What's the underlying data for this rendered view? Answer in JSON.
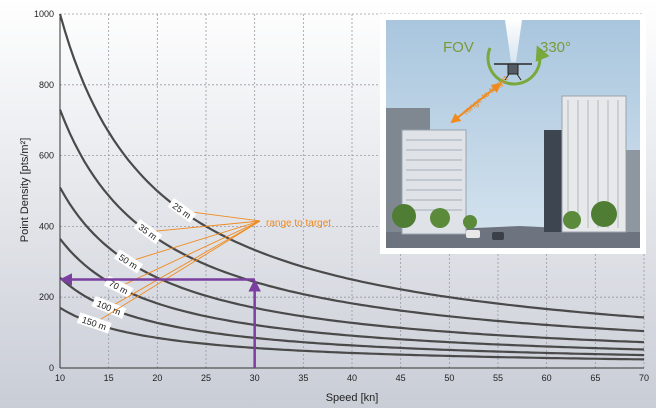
{
  "chart_data": {
    "type": "line",
    "title": "",
    "xlabel": "Speed [kn]",
    "ylabel": "Point Density [pts/m²]",
    "xlim": [
      10,
      70
    ],
    "ylim": [
      0,
      1000
    ],
    "x_ticks": [
      10,
      15,
      20,
      25,
      30,
      35,
      40,
      45,
      50,
      55,
      60,
      65,
      70
    ],
    "y_ticks": [
      0,
      200,
      400,
      600,
      800,
      1000
    ],
    "grid": true,
    "series": [
      {
        "name": "25 m",
        "x": [
          10,
          12,
          15,
          20,
          25,
          30,
          35,
          40,
          45,
          50,
          55,
          60,
          65,
          70
        ],
        "values": [
          1000,
          833,
          667,
          500,
          400,
          333,
          286,
          250,
          222,
          200,
          182,
          167,
          154,
          143
        ]
      },
      {
        "name": "35 m",
        "x": [
          10,
          12,
          15,
          20,
          25,
          30,
          35,
          40,
          45,
          50,
          55,
          60,
          65,
          70
        ],
        "values": [
          730,
          608,
          487,
          365,
          292,
          243,
          209,
          183,
          162,
          146,
          133,
          122,
          112,
          104
        ]
      },
      {
        "name": "50 m",
        "x": [
          10,
          12,
          15,
          20,
          25,
          30,
          35,
          40,
          45,
          50,
          55,
          60,
          65,
          70
        ],
        "values": [
          510,
          425,
          340,
          255,
          204,
          170,
          146,
          128,
          113,
          102,
          93,
          85,
          78,
          73
        ]
      },
      {
        "name": "70 m",
        "x": [
          10,
          12,
          15,
          20,
          25,
          30,
          35,
          40,
          45,
          50,
          55,
          60,
          65,
          70
        ],
        "values": [
          365,
          304,
          243,
          183,
          146,
          122,
          104,
          91,
          81,
          73,
          66,
          61,
          56,
          52
        ]
      },
      {
        "name": "100 m",
        "x": [
          10,
          12,
          15,
          20,
          25,
          30,
          35,
          40,
          45,
          50,
          55,
          60,
          65,
          70
        ],
        "values": [
          255,
          213,
          170,
          128,
          102,
          85,
          73,
          64,
          57,
          51,
          46,
          43,
          39,
          36
        ]
      },
      {
        "name": "150 m",
        "x": [
          10,
          12,
          15,
          20,
          25,
          30,
          35,
          40,
          45,
          50,
          55,
          60,
          65,
          70
        ],
        "values": [
          170,
          142,
          113,
          85,
          68,
          57,
          49,
          43,
          38,
          34,
          31,
          28,
          26,
          24
        ]
      }
    ],
    "annotations": {
      "range_label": "range to target",
      "example_speed": 30,
      "example_density": 250
    },
    "colors": {
      "curve": "#4a4a4a",
      "annotation": "#f08a1e",
      "arrow": "#7b3fa0",
      "grid": "#9a9aa0",
      "background_top": "#ffffff",
      "background_bottom": "#c9cdd6"
    }
  },
  "inset": {
    "fov_label": "FOV",
    "angle_label": "330°",
    "range_label": "range to target",
    "icons": [
      "drone-icon",
      "scan-beam-icon",
      "rotation-arrow-icon"
    ]
  }
}
